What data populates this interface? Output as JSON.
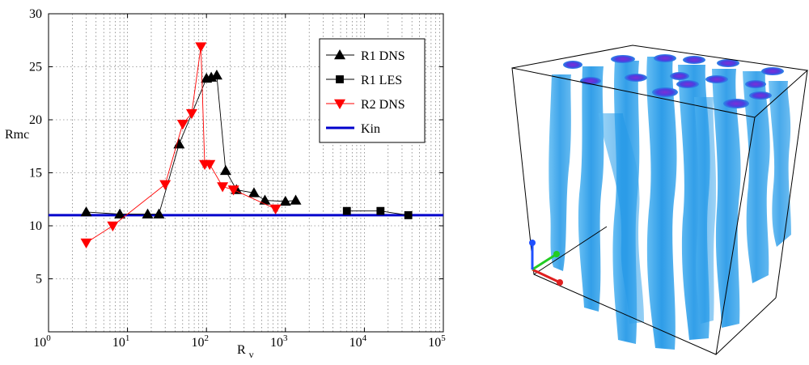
{
  "chart_data": {
    "type": "line",
    "title": "",
    "xlabel_main": "R",
    "xlabel_sub": "v",
    "ylabel": "Rmc",
    "xscale": "log",
    "xlim": [
      1,
      100000
    ],
    "ylim": [
      0,
      30
    ],
    "grid": true,
    "legend_position": "top-right",
    "yticks": [
      {
        "value": 5,
        "label": "5"
      },
      {
        "value": 10,
        "label": "10"
      },
      {
        "value": 15,
        "label": "15"
      },
      {
        "value": 20,
        "label": "20"
      },
      {
        "value": 25,
        "label": "25"
      },
      {
        "value": 30,
        "label": "30"
      }
    ],
    "xticks": [
      {
        "value": 1,
        "base": "10",
        "exp": "0"
      },
      {
        "value": 10,
        "base": "10",
        "exp": "1"
      },
      {
        "value": 100,
        "base": "10",
        "exp": "2"
      },
      {
        "value": 1000,
        "base": "10",
        "exp": "3"
      },
      {
        "value": 10000,
        "base": "10",
        "exp": "4"
      },
      {
        "value": 100000,
        "base": "10",
        "exp": "5"
      }
    ],
    "series": [
      {
        "name": "R1 DNS",
        "color": "#000000",
        "marker": "triangle-up",
        "points": [
          [
            3,
            11.3
          ],
          [
            8,
            11.1
          ],
          [
            18,
            11.1
          ],
          [
            25,
            11.1
          ],
          [
            45,
            17.7
          ],
          [
            100,
            23.9
          ],
          [
            115,
            24.0
          ],
          [
            135,
            24.2
          ],
          [
            175,
            15.2
          ],
          [
            240,
            13.4
          ],
          [
            400,
            13.1
          ],
          [
            550,
            12.4
          ],
          [
            1000,
            12.3
          ],
          [
            1350,
            12.4
          ]
        ]
      },
      {
        "name": "R1 LES",
        "color": "#000000",
        "marker": "square",
        "points": [
          [
            6000,
            11.4
          ],
          [
            16000,
            11.4
          ],
          [
            36000,
            11.0
          ]
        ]
      },
      {
        "name": "R2 DNS",
        "color": "#ff0000",
        "marker": "triangle-down",
        "points": [
          [
            3,
            8.4
          ],
          [
            6.5,
            10.0
          ],
          [
            30,
            13.9
          ],
          [
            50,
            19.6
          ],
          [
            65,
            20.6
          ],
          [
            85,
            26.9
          ],
          [
            95,
            15.8
          ],
          [
            110,
            15.8
          ],
          [
            160,
            13.7
          ],
          [
            220,
            13.4
          ],
          [
            750,
            11.6
          ]
        ]
      },
      {
        "name": "Kin",
        "color": "#0000cc",
        "marker": "none",
        "points": [
          [
            1,
            11
          ],
          [
            100000,
            11
          ]
        ]
      }
    ]
  },
  "volume_image": {
    "depiction": "3d-volume-render",
    "colors": {
      "fluid": "#1e9be8",
      "core": "#7b2fd6",
      "box": "#000000"
    },
    "axes_colors": {
      "x": "#e02020",
      "y": "#22cc22",
      "z": "#2050ff"
    }
  }
}
